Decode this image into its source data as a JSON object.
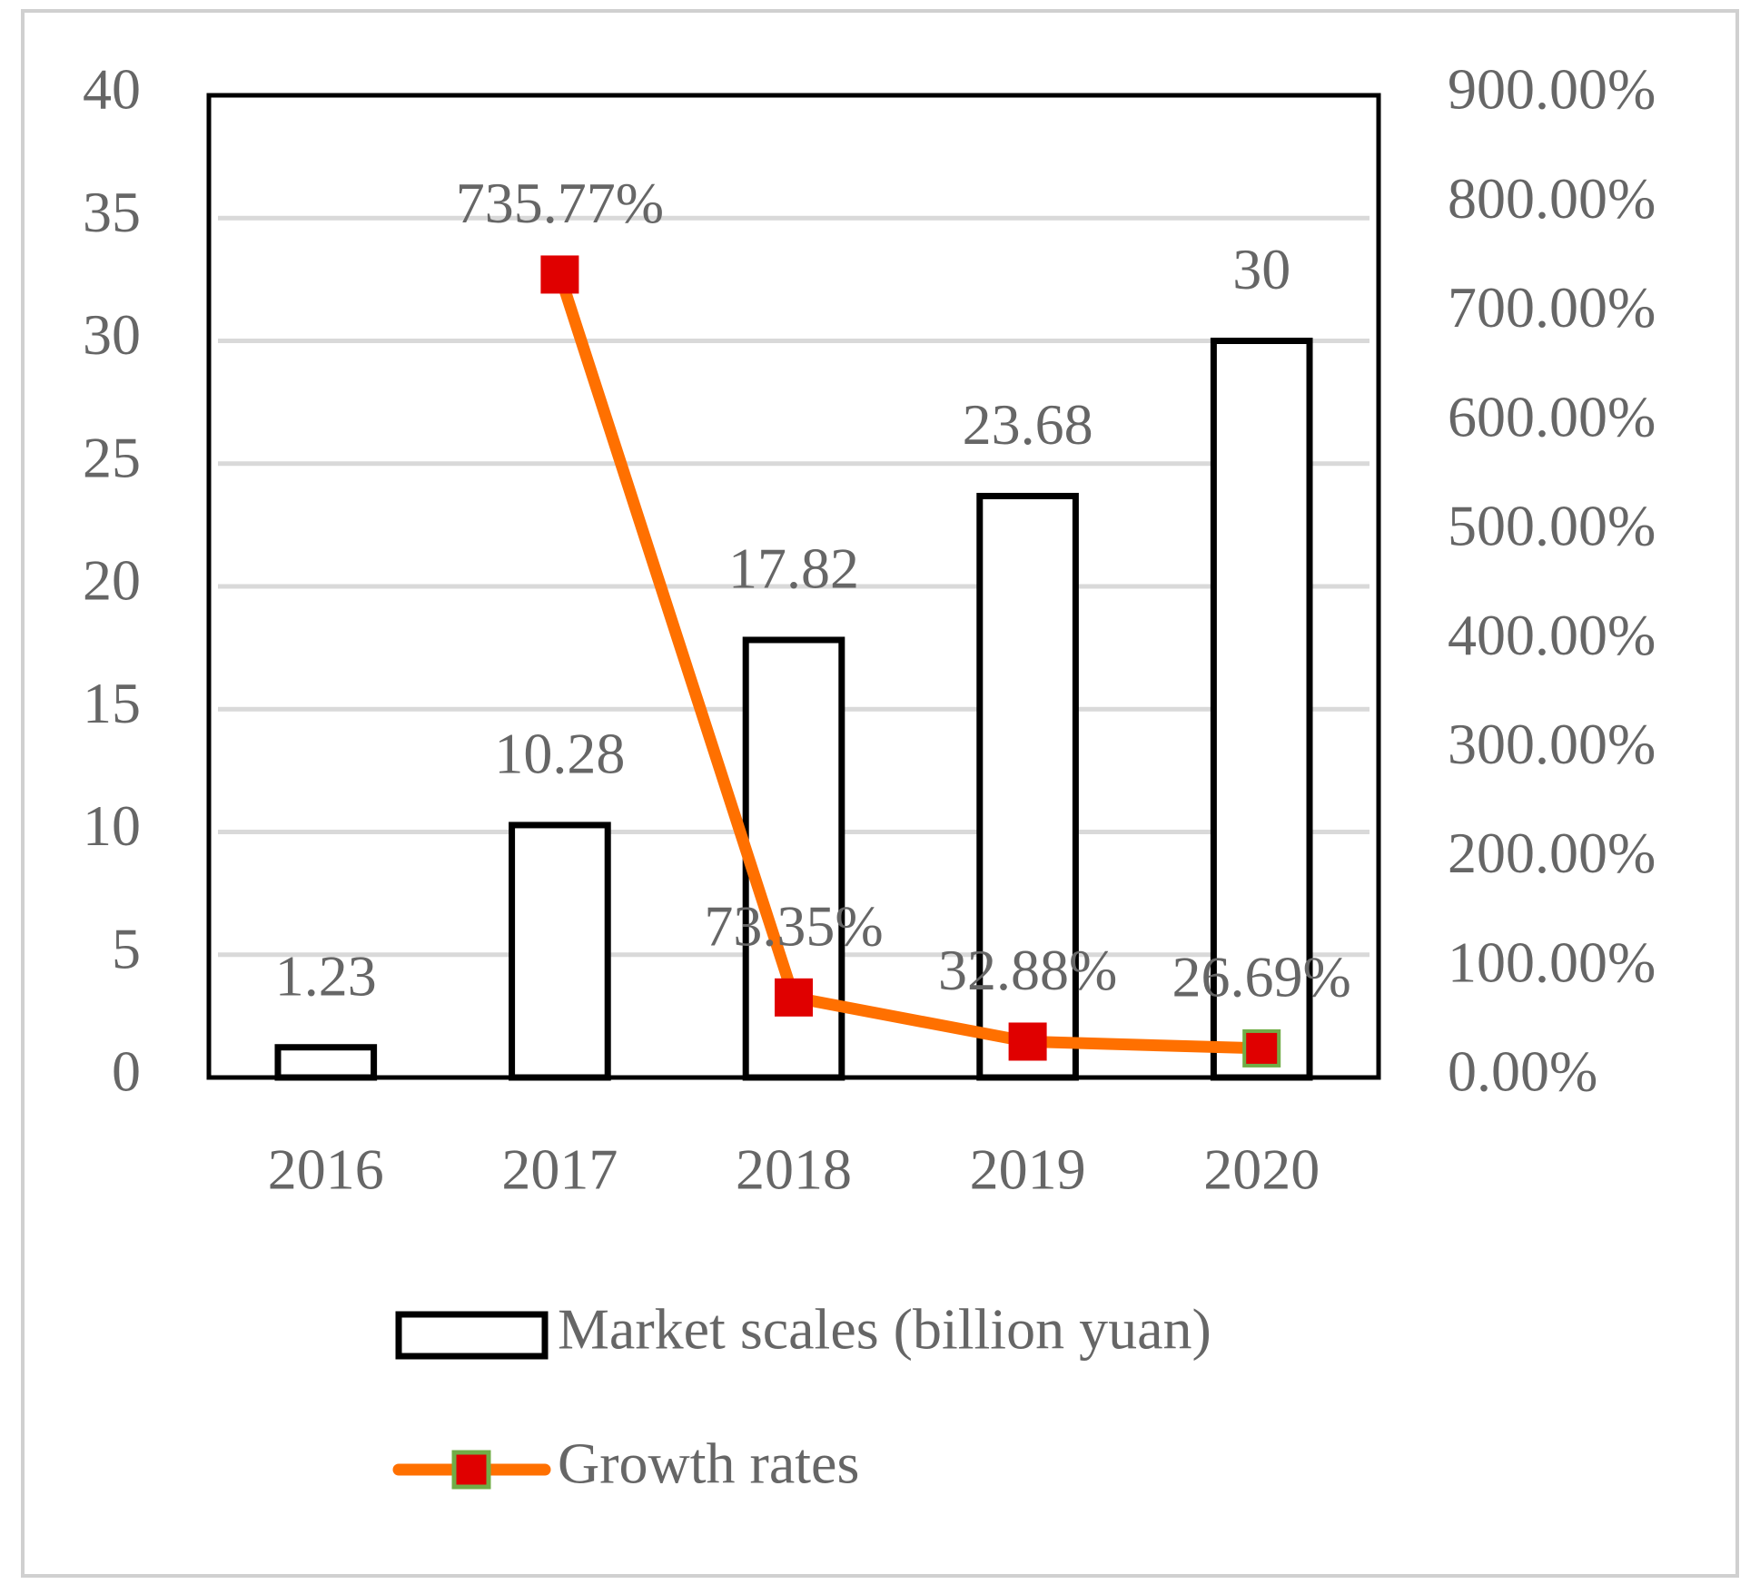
{
  "chart_data": {
    "type": "bar",
    "categories": [
      "2016",
      "2017",
      "2018",
      "2019",
      "2020"
    ],
    "series": [
      {
        "name": "Market scales (billion yuan)",
        "type": "bar",
        "color": "#ffffff",
        "edge_color": "#000000",
        "values": [
          1.23,
          10.28,
          17.82,
          23.68,
          30
        ]
      },
      {
        "name": "Growth rates",
        "type": "line",
        "axis": "y2",
        "color": "#ff7000",
        "marker_color": "#e00000",
        "marker_edge_color": "#70ad47",
        "values": [
          null,
          735.77,
          73.35,
          32.88,
          26.69
        ],
        "value_labels": [
          null,
          "735.77%",
          "73.35%",
          "32.88%",
          "26.69%"
        ]
      }
    ],
    "ylim": [
      0,
      40
    ],
    "yticks": [
      0,
      5,
      10,
      15,
      20,
      25,
      30,
      35,
      40
    ],
    "y2lim": [
      0,
      900
    ],
    "y2ticks": [
      {
        "value": 0,
        "label": "0.00%"
      },
      {
        "value": 100,
        "label": "100.00%"
      },
      {
        "value": 200,
        "label": "200.00%"
      },
      {
        "value": 300,
        "label": "300.00%"
      },
      {
        "value": 400,
        "label": "400.00%"
      },
      {
        "value": 500,
        "label": "500.00%"
      },
      {
        "value": 600,
        "label": "600.00%"
      },
      {
        "value": 700,
        "label": "700.00%"
      },
      {
        "value": 800,
        "label": "800.00%"
      },
      {
        "value": 900,
        "label": "900.00%"
      }
    ],
    "grid": true,
    "legend": "bottom"
  }
}
